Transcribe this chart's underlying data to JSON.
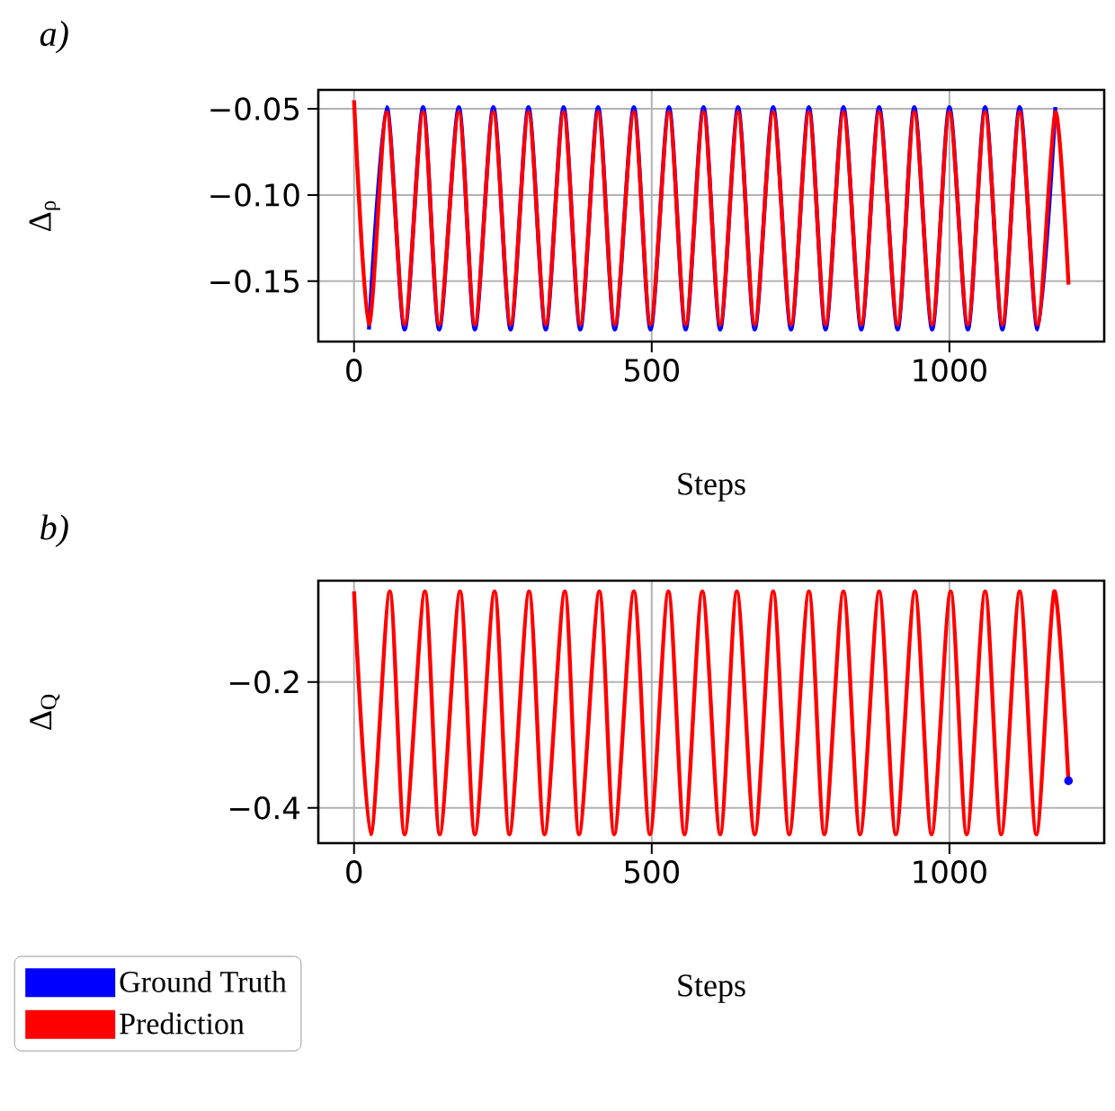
{
  "chart_data": [
    {
      "type": "line",
      "annotations": [
        "*a)*"
      ],
      "xlabel": "Steps",
      "ylabel": "Δ$_{ρ}$",
      "grid": true,
      "xlim": [
        -60,
        1260
      ],
      "xticks": [
        0,
        500,
        1000
      ],
      "ylim": [
        -0.185,
        -0.039
      ],
      "yticks": [
        {
          "value": -0.05,
          "label": "−0.05"
        },
        {
          "value": -0.1,
          "label": "−0.10"
        },
        {
          "value": -0.15,
          "label": "−0.15"
        }
      ],
      "x": [
        0,
        25,
        55,
        85,
        116,
        143,
        176,
        203,
        234,
        263,
        293,
        322,
        352,
        380,
        410,
        438,
        470,
        498,
        529,
        557,
        587,
        615,
        645,
        673,
        704,
        734,
        764,
        792,
        822,
        852,
        882,
        913,
        941,
        971,
        1000,
        1031,
        1060,
        1089,
        1118,
        1148,
        1178,
        1200
      ],
      "series": [
        {
          "color": "#0000ff",
          "values": [
            null,
            -0.178,
            -0.049,
            -0.178,
            -0.049,
            -0.178,
            -0.049,
            -0.178,
            -0.049,
            -0.178,
            -0.049,
            -0.178,
            -0.049,
            -0.178,
            -0.049,
            -0.178,
            -0.049,
            -0.178,
            -0.049,
            -0.178,
            -0.049,
            -0.178,
            -0.049,
            -0.178,
            -0.049,
            -0.178,
            -0.049,
            -0.178,
            -0.049,
            -0.178,
            -0.049,
            -0.178,
            -0.049,
            -0.178,
            -0.049,
            -0.178,
            -0.049,
            -0.178,
            -0.049,
            -0.178,
            -0.049,
            null
          ]
        },
        {
          "color": "#ff0000",
          "values": [
            -0.045,
            -0.175,
            -0.052,
            -0.175,
            -0.052,
            -0.175,
            -0.052,
            -0.175,
            -0.052,
            -0.175,
            -0.052,
            -0.175,
            -0.052,
            -0.175,
            -0.052,
            -0.175,
            -0.052,
            -0.175,
            -0.052,
            -0.175,
            -0.052,
            -0.175,
            -0.052,
            -0.175,
            -0.052,
            -0.175,
            -0.052,
            -0.175,
            -0.052,
            -0.175,
            -0.052,
            -0.175,
            -0.052,
            -0.175,
            -0.052,
            -0.175,
            -0.052,
            -0.175,
            -0.052,
            -0.175,
            -0.052,
            -0.152
          ]
        }
      ]
    },
    {
      "type": "line",
      "annotations": [
        "*b)*"
      ],
      "xlabel": "Steps",
      "ylabel": "Δ$_{Q}$",
      "grid": true,
      "legend": "bottom left",
      "xlim": [
        -60,
        1260
      ],
      "xticks": [
        0,
        500,
        1000
      ],
      "ylim": [
        -0.456,
        -0.039
      ],
      "yticks": [
        {
          "value": -0.2,
          "label": "−0.2"
        },
        {
          "value": -0.4,
          "label": "−0.4"
        }
      ],
      "x": [
        0,
        28,
        60,
        85,
        119,
        144,
        178,
        203,
        236,
        261,
        294,
        320,
        354,
        378,
        412,
        437,
        470,
        497,
        528,
        555,
        585,
        615,
        643,
        673,
        704,
        731,
        764,
        790,
        822,
        850,
        882,
        910,
        942,
        970,
        1002,
        1029,
        1060,
        1087,
        1118,
        1146,
        1176,
        1200
      ],
      "series": [
        {
          "name": "Ground Truth",
          "color": "#0000ff",
          "marker": "circle",
          "values": [
            null,
            null,
            null,
            null,
            null,
            null,
            null,
            null,
            null,
            null,
            null,
            null,
            null,
            null,
            null,
            null,
            null,
            null,
            null,
            null,
            null,
            null,
            null,
            null,
            null,
            null,
            null,
            null,
            null,
            null,
            null,
            null,
            null,
            null,
            null,
            null,
            null,
            null,
            null,
            null,
            null,
            -0.357
          ]
        },
        {
          "name": "Prediction",
          "color": "#ff0000",
          "values": [
            -0.056,
            -0.442,
            -0.056,
            -0.442,
            -0.056,
            -0.442,
            -0.056,
            -0.442,
            -0.056,
            -0.442,
            -0.056,
            -0.442,
            -0.056,
            -0.442,
            -0.056,
            -0.442,
            -0.056,
            -0.442,
            -0.056,
            -0.442,
            -0.056,
            -0.442,
            -0.056,
            -0.442,
            -0.056,
            -0.442,
            -0.056,
            -0.442,
            -0.056,
            -0.442,
            -0.056,
            -0.442,
            -0.056,
            -0.442,
            -0.056,
            -0.442,
            -0.056,
            -0.442,
            -0.056,
            -0.442,
            -0.056,
            -0.36
          ]
        }
      ]
    }
  ]
}
